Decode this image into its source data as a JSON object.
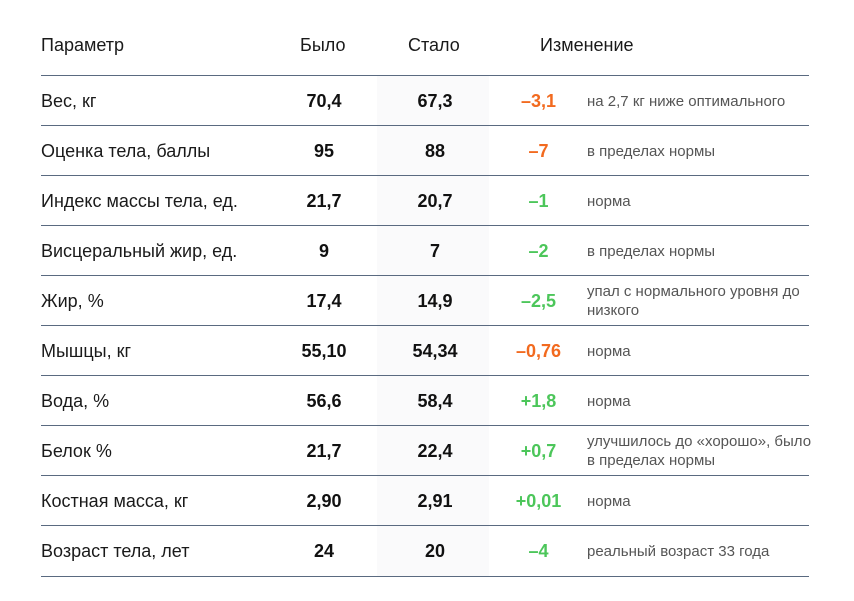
{
  "header": {
    "param": "Параметр",
    "was": "Было",
    "now": "Стало",
    "change": "Изменение"
  },
  "colors": {
    "decrease_highlight": "#f26a1f",
    "change_good": "#4cc65a",
    "divider": "#5a6a80"
  },
  "rows": [
    {
      "param": "Вес, кг",
      "was": "70,4",
      "now": "67,3",
      "change": "–3,1",
      "tone": "neg",
      "note": "на 2,7 кг ниже оптимального"
    },
    {
      "param": "Оценка тела, баллы",
      "was": "95",
      "now": "88",
      "change": "–7",
      "tone": "neg",
      "note": "в пределах нормы"
    },
    {
      "param": "Индекс массы тела, ед.",
      "was": "21,7",
      "now": "20,7",
      "change": "–1",
      "tone": "pos",
      "note": "норма"
    },
    {
      "param": "Висцеральный жир, ед.",
      "was": "9",
      "now": "7",
      "change": "–2",
      "tone": "pos",
      "note": "в пределах нормы"
    },
    {
      "param": "Жир, %",
      "was": "17,4",
      "now": "14,9",
      "change": "–2,5",
      "tone": "pos",
      "note": "упал с нормального уровня до низкого"
    },
    {
      "param": "Мышцы, кг",
      "was": "55,10",
      "now": "54,34",
      "change": "–0,76",
      "tone": "neg",
      "note": "норма"
    },
    {
      "param": "Вода, %",
      "was": "56,6",
      "now": "58,4",
      "change": "+1,8",
      "tone": "pos",
      "note": "норма"
    },
    {
      "param": "Белок %",
      "was": "21,7",
      "now": "22,4",
      "change": "+0,7",
      "tone": "pos",
      "note": "улучшилось до «хорошо», было в пределах нормы"
    },
    {
      "param": "Костная масса, кг",
      "was": "2,90",
      "now": "2,91",
      "change": "+0,01",
      "tone": "pos",
      "note": "норма"
    },
    {
      "param": "Возраст тела, лет",
      "was": "24",
      "now": "20",
      "change": "–4",
      "tone": "pos",
      "note": "реальный возраст 33 года"
    }
  ]
}
